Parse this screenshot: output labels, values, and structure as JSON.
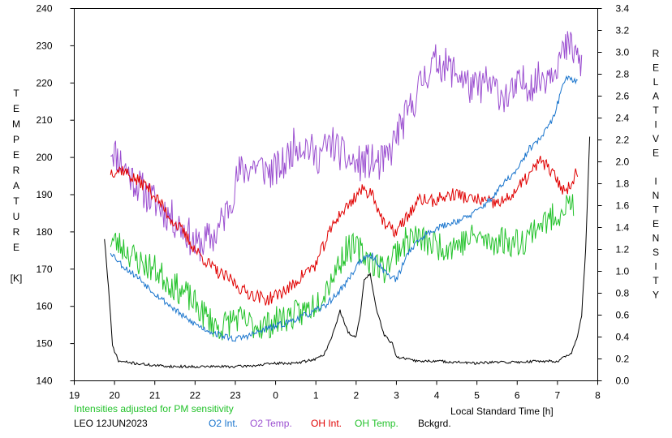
{
  "chart_data": {
    "type": "line",
    "xlabel": "Local Standard Time [h]",
    "ylabel_left": [
      "T",
      "E",
      "M",
      "P",
      "E",
      "R",
      "A",
      "T",
      "U",
      "R",
      "E",
      "",
      "[K]"
    ],
    "ylabel_right": [
      "R",
      "E",
      "L",
      "A",
      "T",
      "I",
      "V",
      "E",
      "",
      "I",
      "N",
      "T",
      "E",
      "N",
      "S",
      "I",
      "T",
      "Y"
    ],
    "x_tick_labels": [
      "19",
      "20",
      "21",
      "22",
      "23",
      "0",
      "1",
      "2",
      "3",
      "4",
      "5",
      "6",
      "7",
      "8"
    ],
    "x_ticks_continuous": [
      19,
      20,
      21,
      22,
      23,
      24,
      25,
      26,
      27,
      28,
      29,
      30,
      31,
      32
    ],
    "y_left_ticks": [
      "140",
      "150",
      "160",
      "170",
      "180",
      "190",
      "200",
      "210",
      "220",
      "230",
      "240"
    ],
    "y_right_ticks": [
      "0.0",
      "0.2",
      "0.4",
      "0.6",
      "0.8",
      "1.0",
      "1.2",
      "1.4",
      "1.6",
      "1.8",
      "2.0",
      "2.2",
      "2.4",
      "2.6",
      "2.8",
      "3.0",
      "3.2",
      "3.4"
    ],
    "xlim": [
      19,
      32
    ],
    "ylim_left": [
      140,
      240
    ],
    "ylim_right": [
      0,
      3.4
    ],
    "note": "Intensities adjusted for PM sensitivity",
    "station_date": "LEO 12JUN2023",
    "legend": [
      {
        "label": "O2 Int.",
        "color": "#1874cd"
      },
      {
        "label": "O2 Temp.",
        "color": "#9b4fd0"
      },
      {
        "label": "OH Int.",
        "color": "#e00000"
      },
      {
        "label": "OH Temp.",
        "color": "#22c22a"
      },
      {
        "label": "Bckgrd.",
        "color": "#000000"
      }
    ],
    "series": [
      {
        "name": "O2 Temp.",
        "axis": "left",
        "color": "#9b4fd0",
        "noise": 5.0,
        "seed": 11,
        "x": [
          19.9,
          20.4,
          20.8,
          21.2,
          21.5,
          21.8,
          22.0,
          22.5,
          22.8,
          23.1,
          23.5,
          23.9,
          24.2,
          24.5,
          24.8,
          25.0,
          25.4,
          25.7,
          26.0,
          26.3,
          26.6,
          26.8,
          27.0,
          27.3,
          27.7,
          28.0,
          28.3,
          28.6,
          28.9,
          29.2,
          29.5,
          29.8,
          30.1,
          30.4,
          30.7,
          31.0,
          31.3,
          31.6
        ],
        "y": [
          203,
          195,
          190,
          186,
          183,
          180,
          176,
          179,
          186,
          196,
          198,
          196,
          198,
          204,
          203,
          200,
          204,
          200,
          198,
          199,
          198,
          200,
          206,
          212,
          222,
          226,
          224,
          222,
          218,
          220,
          218,
          216,
          220,
          220,
          222,
          226,
          230,
          225
        ]
      },
      {
        "name": "OH Temp.",
        "axis": "left",
        "color": "#22c22a",
        "noise": 4.0,
        "seed": 23,
        "x": [
          19.9,
          20.2,
          20.6,
          21.0,
          21.4,
          21.8,
          22.2,
          22.6,
          23.0,
          23.4,
          23.8,
          24.2,
          24.6,
          24.9,
          25.2,
          25.5,
          25.8,
          26.1,
          26.4,
          26.7,
          27.0,
          27.4,
          27.8,
          28.2,
          28.6,
          29.0,
          29.3,
          29.6,
          29.9,
          30.2,
          30.5,
          30.8,
          31.1,
          31.4
        ],
        "y": [
          178,
          176,
          172,
          170,
          166,
          163,
          158,
          154,
          157,
          155,
          155,
          157,
          158,
          160,
          164,
          170,
          176,
          175,
          172,
          170,
          175,
          179,
          177,
          176,
          177,
          179,
          177,
          178,
          177,
          178,
          182,
          183,
          186,
          188
        ]
      },
      {
        "name": "OH Int.",
        "axis": "right",
        "color": "#e00000",
        "noise": 0.06,
        "seed": 37,
        "x": [
          19.9,
          20.2,
          20.5,
          20.8,
          21.1,
          21.4,
          21.7,
          22.0,
          22.3,
          22.6,
          22.9,
          23.2,
          23.5,
          23.8,
          24.1,
          24.4,
          24.7,
          25.0,
          25.2,
          25.5,
          25.8,
          26.1,
          26.4,
          26.7,
          27.0,
          27.3,
          27.6,
          27.9,
          28.2,
          28.5,
          28.8,
          29.1,
          29.4,
          29.7,
          30.0,
          30.3,
          30.6,
          30.9,
          31.2,
          31.5
        ],
        "y": [
          1.91,
          1.93,
          1.84,
          1.78,
          1.64,
          1.48,
          1.36,
          1.2,
          1.08,
          0.98,
          0.92,
          0.82,
          0.78,
          0.74,
          0.8,
          0.86,
          0.98,
          1.06,
          1.24,
          1.48,
          1.6,
          1.74,
          1.72,
          1.42,
          1.36,
          1.52,
          1.66,
          1.64,
          1.68,
          1.71,
          1.66,
          1.65,
          1.62,
          1.64,
          1.75,
          1.88,
          2.02,
          1.88,
          1.72,
          1.92
        ]
      },
      {
        "name": "O2 Int.",
        "axis": "right",
        "color": "#1874cd",
        "noise": 0.03,
        "seed": 53,
        "x": [
          19.9,
          20.2,
          20.6,
          21.0,
          21.4,
          21.8,
          22.2,
          22.6,
          23.0,
          23.4,
          23.8,
          24.2,
          24.6,
          24.9,
          25.2,
          25.5,
          25.8,
          26.1,
          26.4,
          26.7,
          27.0,
          27.3,
          27.6,
          27.9,
          28.2,
          28.5,
          28.8,
          29.1,
          29.4,
          29.7,
          30.0,
          30.3,
          30.6,
          30.9,
          31.2,
          31.5
        ],
        "y": [
          1.18,
          1.05,
          0.94,
          0.8,
          0.68,
          0.56,
          0.48,
          0.42,
          0.38,
          0.42,
          0.48,
          0.52,
          0.58,
          0.62,
          0.68,
          0.78,
          0.92,
          1.1,
          1.14,
          1.0,
          0.92,
          1.18,
          1.3,
          1.38,
          1.42,
          1.46,
          1.5,
          1.58,
          1.68,
          1.82,
          1.92,
          2.12,
          2.22,
          2.4,
          2.78,
          2.74
        ]
      },
      {
        "name": "Bckgrd.",
        "axis": "right",
        "color": "#000000",
        "noise": 0.012,
        "seed": 71,
        "x": [
          19.75,
          19.85,
          19.95,
          20.1,
          20.5,
          21.0,
          21.5,
          22.0,
          22.5,
          23.0,
          23.5,
          24.0,
          24.5,
          25.0,
          25.2,
          25.4,
          25.6,
          25.8,
          26.0,
          26.1,
          26.2,
          26.35,
          26.5,
          26.7,
          26.9,
          27.0,
          27.5,
          28.0,
          28.5,
          29.0,
          29.5,
          30.0,
          30.5,
          31.0,
          31.2,
          31.35,
          31.5,
          31.6,
          31.7,
          31.8
        ],
        "y": [
          1.3,
          0.85,
          0.32,
          0.18,
          0.16,
          0.14,
          0.13,
          0.13,
          0.13,
          0.13,
          0.14,
          0.16,
          0.16,
          0.2,
          0.24,
          0.4,
          0.64,
          0.44,
          0.4,
          0.6,
          0.92,
          0.98,
          0.66,
          0.42,
          0.34,
          0.22,
          0.18,
          0.18,
          0.17,
          0.16,
          0.17,
          0.17,
          0.18,
          0.18,
          0.22,
          0.26,
          0.4,
          0.6,
          1.2,
          2.22
        ]
      }
    ]
  }
}
